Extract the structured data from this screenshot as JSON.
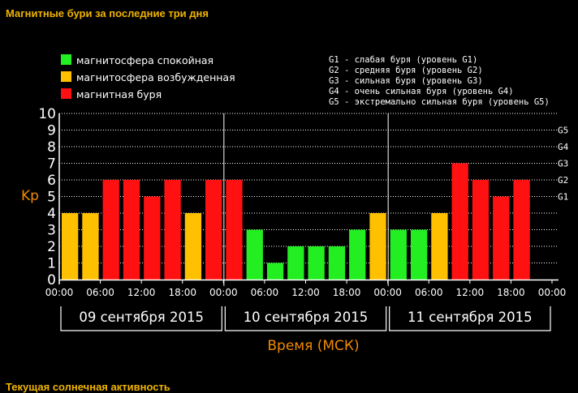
{
  "header": {
    "title": "Магнитные бури за последние три дня"
  },
  "footer": {
    "text": "Текущая солнечная активность"
  },
  "colors": {
    "calm": "#22ee22",
    "excited": "#ffc000",
    "storm": "#ff1111",
    "accent": "#f0b400",
    "axis_label": "#f08a00"
  },
  "legend": {
    "items": [
      {
        "key": "calm",
        "label": "магнитосфера спокойная"
      },
      {
        "key": "excited",
        "label": "магнитосфера возбужденная"
      },
      {
        "key": "storm",
        "label": "магнитная буря"
      }
    ],
    "g_levels": [
      "G1 - слабая буря (уровень G1)",
      "G2 - средняя буря (уровень G2)",
      "G3 - сильная буря (уровень G3)",
      "G4 - очень сильная буря (уровень G4)",
      "G5 - экстремально сильная буря (уровень G5)"
    ]
  },
  "chart_data": {
    "type": "bar",
    "title": "Магнитные бури за последние три дня",
    "ylabel": "Kp",
    "xlabel": "Время (МСК)",
    "ylim": [
      0,
      10
    ],
    "y_ticks": [
      "0",
      "1",
      "2",
      "3",
      "4",
      "5",
      "6",
      "7",
      "8",
      "9",
      "10"
    ],
    "right_ticks": [
      {
        "label": "G1",
        "value": 5
      },
      {
        "label": "G2",
        "value": 6
      },
      {
        "label": "G3",
        "value": 7
      },
      {
        "label": "G4",
        "value": 8
      },
      {
        "label": "G5",
        "value": 9
      }
    ],
    "x_ticks": [
      "00:00",
      "06:00",
      "12:00",
      "18:00",
      "00:00",
      "06:00",
      "12:00",
      "18:00",
      "00:00",
      "06:00",
      "12:00",
      "18:00",
      "00:00"
    ],
    "days": [
      "09 сентября 2015",
      "10 сентября 2015",
      "11 сентября 2015"
    ],
    "series": [
      {
        "name": "Kp",
        "values": [
          4,
          4,
          6,
          6,
          5,
          6,
          4,
          6,
          6,
          3,
          1,
          2,
          2,
          2,
          3,
          4,
          3,
          3,
          4,
          7,
          6,
          5,
          6
        ]
      }
    ],
    "colors": [
      "excited",
      "excited",
      "storm",
      "storm",
      "storm",
      "storm",
      "excited",
      "storm",
      "storm",
      "calm",
      "calm",
      "calm",
      "calm",
      "calm",
      "calm",
      "excited",
      "calm",
      "calm",
      "excited",
      "storm",
      "storm",
      "storm",
      "storm"
    ]
  }
}
